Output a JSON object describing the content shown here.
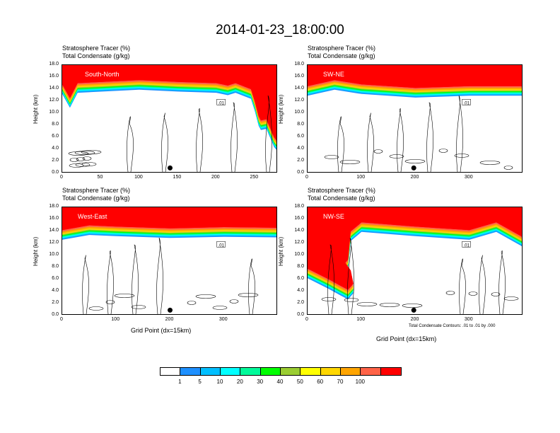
{
  "title": "2014-01-23_18:00:00",
  "field_label_1": "Stratosphere Tracer   (%)",
  "field_label_2": "Total Condensate   (g/kg)",
  "y_axis_label": "Height (km)",
  "x_axis_label": "Grid Point (dx=15km)",
  "y_ticks": [
    "0.0",
    "2.0",
    "4.0",
    "6.0",
    "8.0",
    "10.0",
    "12.0",
    "14.0",
    "16.0",
    "18.0"
  ],
  "contour_note": "Total Condensate Contours: .01 to .01 by .000",
  "contour_tag": ".01",
  "colorbar": {
    "levels": [
      "1",
      "5",
      "10",
      "20",
      "30",
      "40",
      "50",
      "60",
      "70",
      "100"
    ],
    "colors": [
      "#ffffff",
      "#1e90ff",
      "#00bfff",
      "#00ffff",
      "#00fa9a",
      "#00ff00",
      "#9acd32",
      "#ffff00",
      "#ffd700",
      "#ffa500",
      "#ff6347",
      "#ff0000"
    ]
  },
  "chart_data": [
    {
      "type": "contour",
      "panel": "South-North",
      "x_ticks": [
        "0",
        "50",
        "100",
        "150",
        "200",
        "250"
      ],
      "xlim": [
        0,
        280
      ],
      "ylim": [
        0,
        18
      ],
      "tropopause_km": [
        [
          0,
          14.8
        ],
        [
          10,
          12.5
        ],
        [
          20,
          15.0
        ],
        [
          100,
          15.5
        ],
        [
          150,
          15.2
        ],
        [
          200,
          15.0
        ],
        [
          215,
          14.6
        ],
        [
          225,
          15.0
        ],
        [
          245,
          14.0
        ],
        [
          250,
          12.0
        ],
        [
          255,
          9.5
        ],
        [
          258,
          8.8
        ],
        [
          265,
          9.0
        ],
        [
          275,
          6.0
        ],
        [
          280,
          5.2
        ]
      ],
      "marker_x": 140
    },
    {
      "type": "contour",
      "panel": "SW-NE",
      "x_ticks": [
        "0",
        "100",
        "200",
        "300"
      ],
      "xlim": [
        0,
        400
      ],
      "ylim": [
        0,
        18
      ],
      "tropopause_km": [
        [
          0,
          14.5
        ],
        [
          50,
          15.5
        ],
        [
          100,
          14.8
        ],
        [
          200,
          14.2
        ],
        [
          300,
          14.5
        ],
        [
          400,
          14.5
        ]
      ],
      "marker_x": 197
    },
    {
      "type": "contour",
      "panel": "West-East",
      "x_ticks": [
        "0",
        "100",
        "200",
        "300"
      ],
      "xlim": [
        0,
        400
      ],
      "ylim": [
        0,
        18
      ],
      "tropopause_km": [
        [
          0,
          14.2
        ],
        [
          50,
          15.0
        ],
        [
          100,
          14.8
        ],
        [
          200,
          14.5
        ],
        [
          300,
          14.7
        ],
        [
          400,
          14.6
        ]
      ],
      "marker_x": 200
    },
    {
      "type": "contour",
      "panel": "NW-SE",
      "x_ticks": [
        "0",
        "100",
        "200",
        "300"
      ],
      "xlim": [
        0,
        400
      ],
      "ylim": [
        0,
        18
      ],
      "tropopause_km": [
        [
          0,
          7.8
        ],
        [
          40,
          6.0
        ],
        [
          60,
          5.0
        ],
        [
          75,
          4.3
        ],
        [
          85,
          5.3
        ],
        [
          80,
          7.5
        ],
        [
          70,
          8.8
        ],
        [
          75,
          9.3
        ],
        [
          80,
          14.0
        ],
        [
          100,
          15.5
        ],
        [
          200,
          14.8
        ],
        [
          300,
          14.2
        ],
        [
          350,
          15.5
        ],
        [
          400,
          13.0
        ]
      ],
      "marker_x": 197
    }
  ]
}
